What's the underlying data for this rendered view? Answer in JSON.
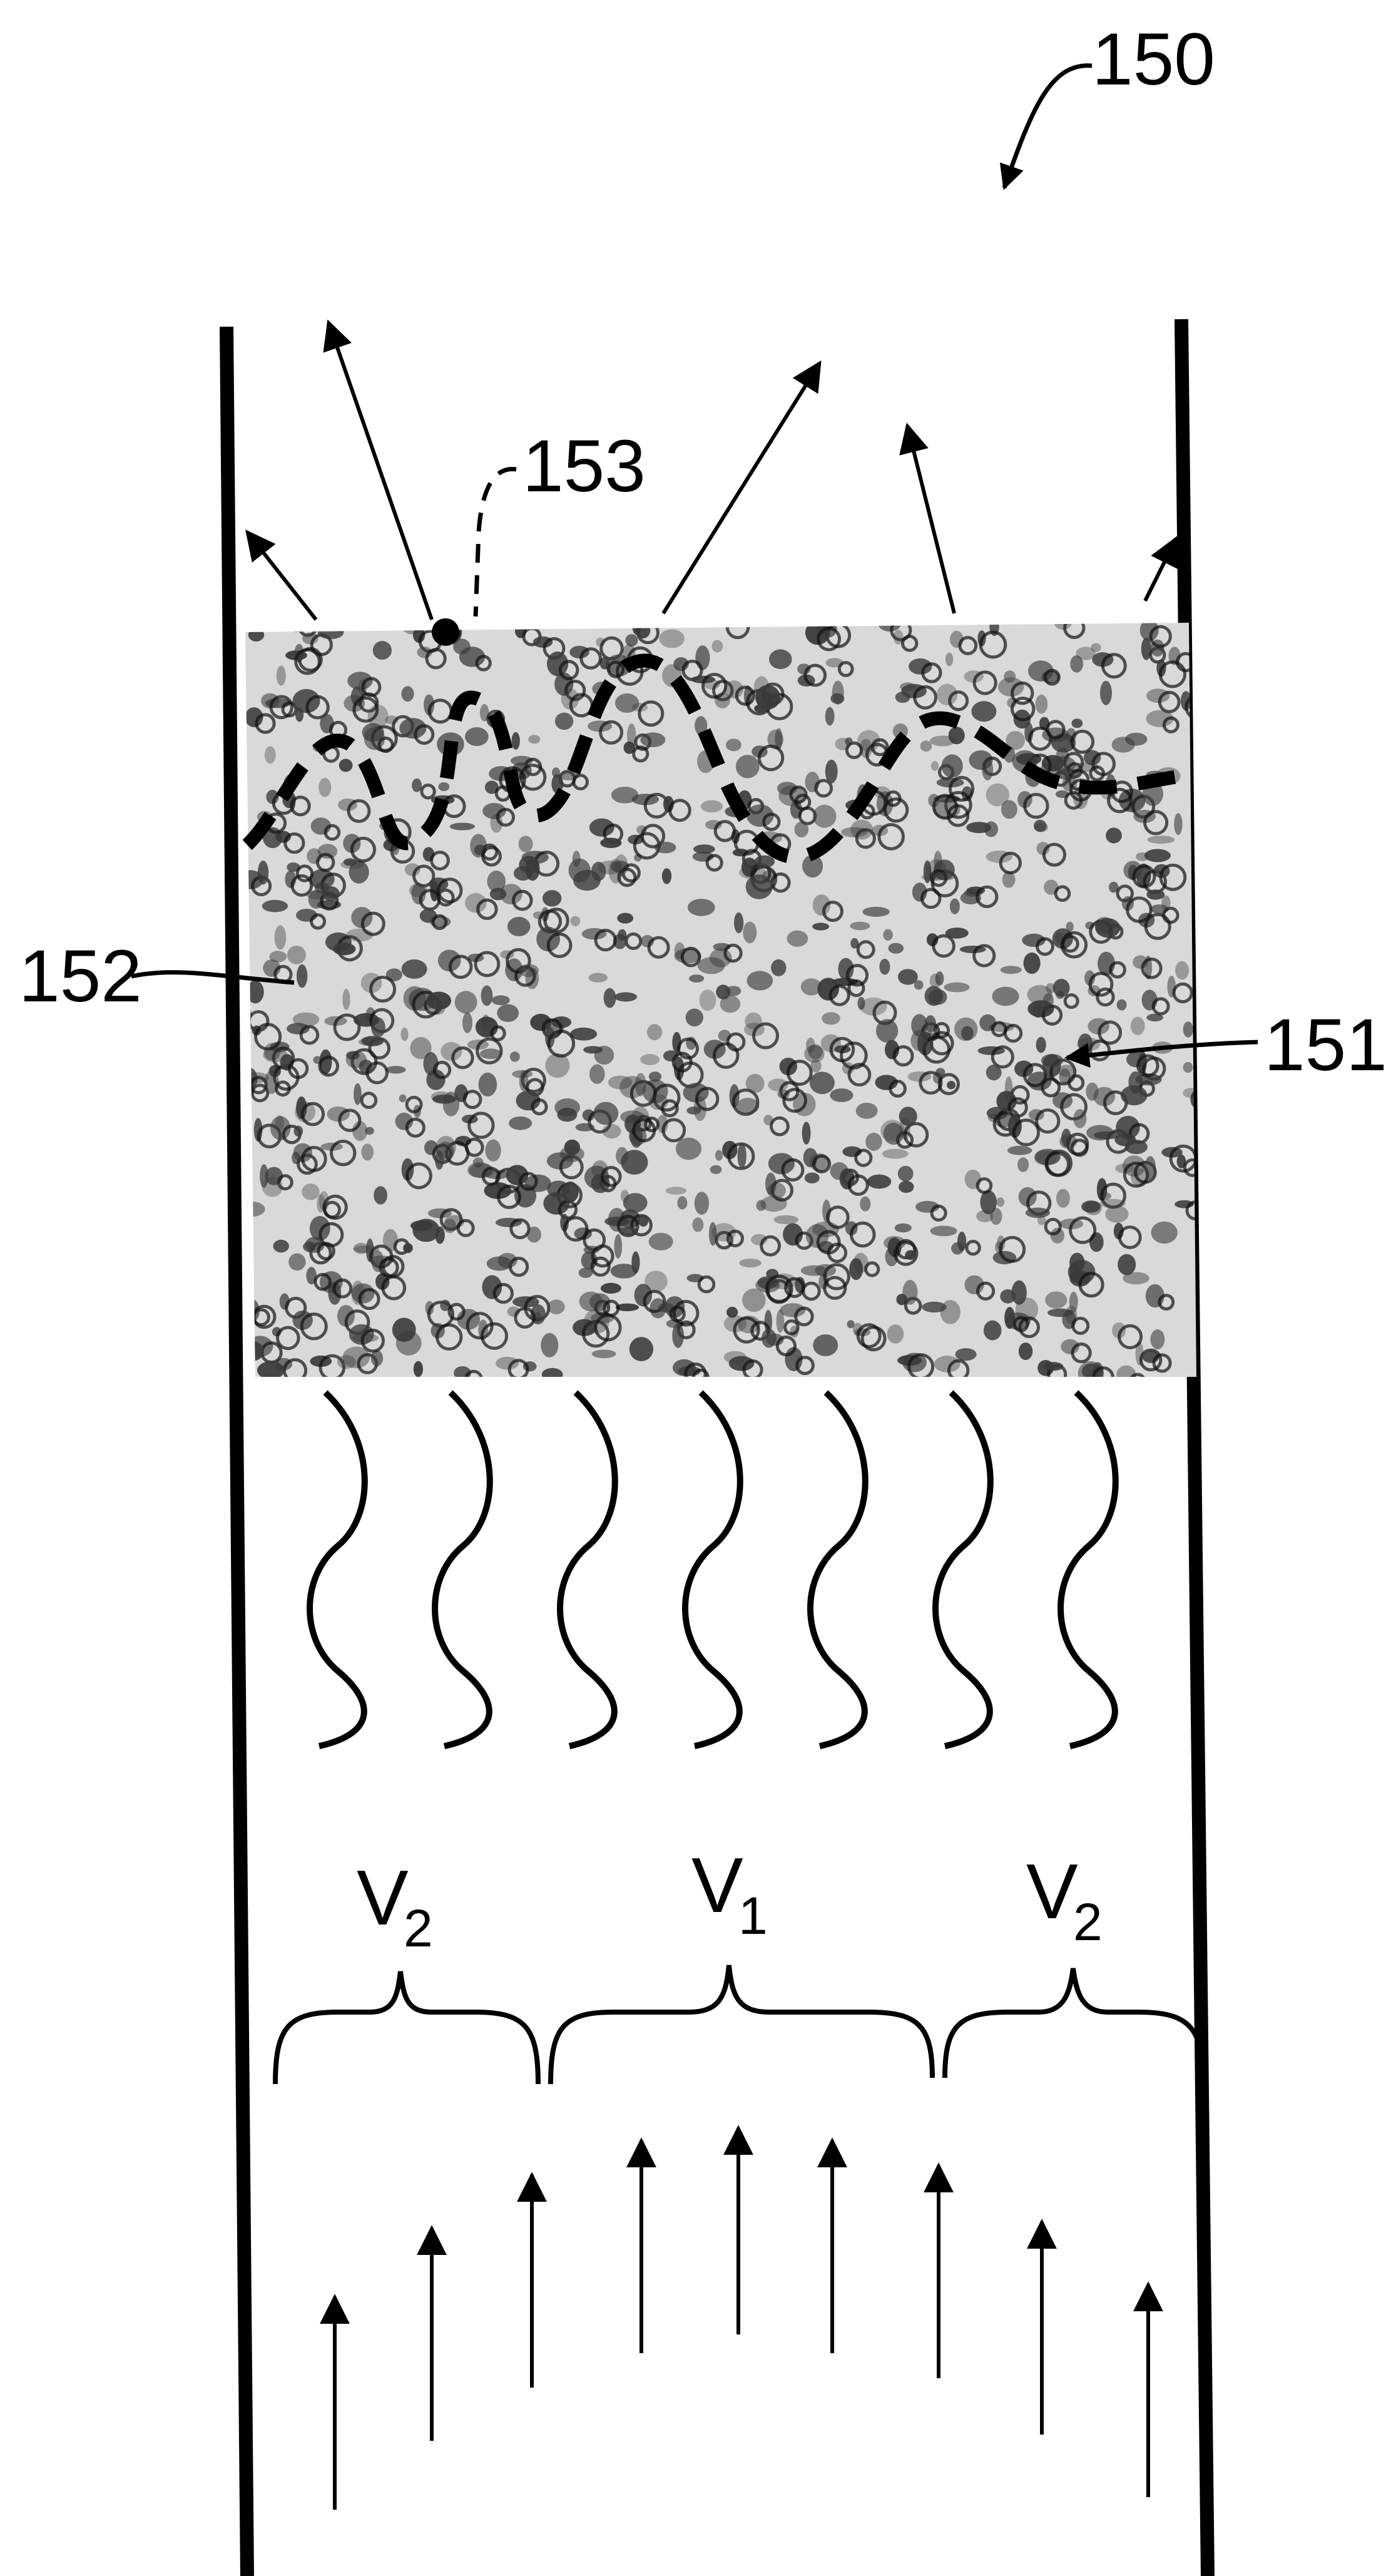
{
  "figure": {
    "ref_apparatus": "150",
    "ref_bed_left": "152",
    "ref_bed_right": "151",
    "ref_wave": "153"
  },
  "velocity_zones": [
    {
      "symbol": "V",
      "subscript": "2"
    },
    {
      "symbol": "V",
      "subscript": "1"
    },
    {
      "symbol": "V",
      "subscript": "2"
    }
  ],
  "colors": {
    "ink": "#000000",
    "bed_speckle": "#3a3a3a",
    "background": "#ffffff"
  }
}
